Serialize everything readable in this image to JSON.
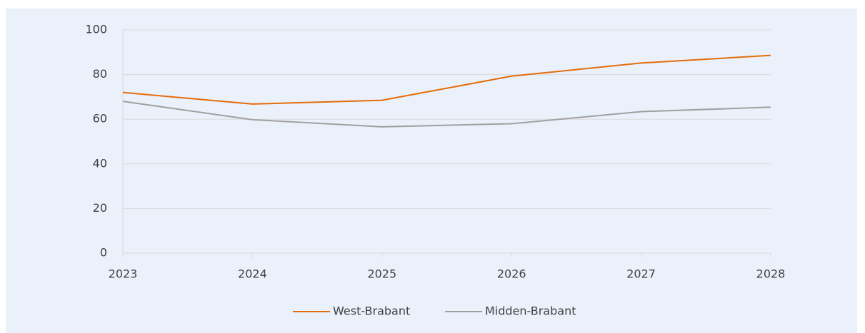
{
  "chart_data": {
    "type": "line",
    "x": [
      2023,
      2024,
      2025,
      2026,
      2027,
      2028
    ],
    "series": [
      {
        "name": "West-Brabant",
        "color": "#e46c0a",
        "values": [
          72,
          66.8,
          68.5,
          79.3,
          85.2,
          88.6
        ]
      },
      {
        "name": "Midden-Brabant",
        "color": "#a0a0a0",
        "values": [
          68,
          59.8,
          56.6,
          58,
          63.4,
          65.4
        ]
      }
    ],
    "xlim": [
      2023,
      2028
    ],
    "xticks": [
      2023,
      2024,
      2025,
      2026,
      2027,
      2028
    ],
    "ylim": [
      0,
      100
    ],
    "yticks": [
      0,
      20,
      40,
      60,
      80,
      100
    ],
    "grid": true,
    "legend": "bottom"
  }
}
